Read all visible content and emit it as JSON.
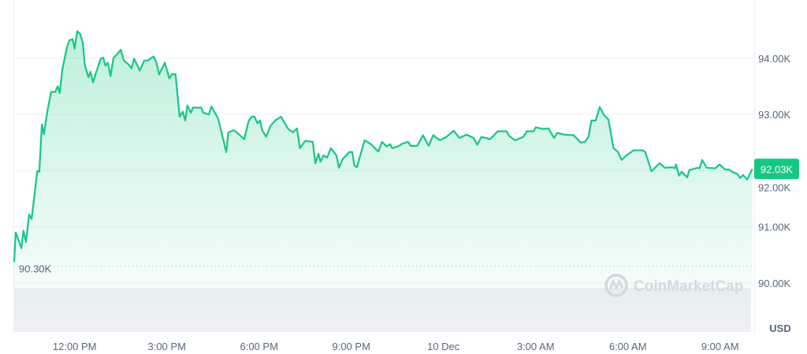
{
  "chart_data": {
    "type": "line",
    "currency": "USD",
    "line_color": "#16c784",
    "reference_line": {
      "value": 90300,
      "label": "90.30K"
    },
    "current_price": {
      "value": 92030,
      "label": "92.03K",
      "color": "#16c784"
    },
    "watermark": "CoinMarketCap",
    "ylim": [
      89000,
      94900
    ],
    "grid": true,
    "y_ticks": [
      {
        "value": 94000,
        "label": "94.00K"
      },
      {
        "value": 93000,
        "label": "93.00K"
      },
      {
        "value": 92000,
        "label": "92.00K"
      },
      {
        "value": 91000,
        "label": "91.00K"
      },
      {
        "value": 90000,
        "label": "90.00K"
      }
    ],
    "x_ticks": [
      {
        "time": "09 Dec 12:00",
        "label": "12:00 PM"
      },
      {
        "time": "09 Dec 15:00",
        "label": "3:00 PM"
      },
      {
        "time": "09 Dec 18:00",
        "label": "6:00 PM"
      },
      {
        "time": "09 Dec 21:00",
        "label": "9:00 PM"
      },
      {
        "time": "10 Dec 00:00",
        "label": "10 Dec"
      },
      {
        "time": "10 Dec 03:00",
        "label": "3:00 AM"
      },
      {
        "time": "10 Dec 06:00",
        "label": "6:00 AM"
      },
      {
        "time": "10 Dec 09:00",
        "label": "9:00 AM"
      }
    ],
    "series": [
      {
        "x": [
          "09 Dec 10:02",
          "09 Dec 10:05",
          "09 Dec 10:16",
          "09 Dec 10:20",
          "09 Dec 10:25",
          "09 Dec 10:31",
          "09 Dec 10:36",
          "09 Dec 10:47",
          "09 Dec 10:51",
          "09 Dec 10:56",
          "09 Dec 11:00",
          "09 Dec 11:07",
          "09 Dec 11:14",
          "09 Dec 11:22",
          "09 Dec 11:27",
          "09 Dec 11:31",
          "09 Dec 11:36",
          "09 Dec 11:45",
          "09 Dec 11:50",
          "09 Dec 11:56",
          "09 Dec 12:00",
          "09 Dec 12:05",
          "09 Dec 12:11",
          "09 Dec 12:16",
          "09 Dec 12:20",
          "09 Dec 12:27",
          "09 Dec 12:31",
          "09 Dec 12:36",
          "09 Dec 12:42",
          "09 Dec 12:51",
          "09 Dec 12:56",
          "09 Dec 13:00",
          "09 Dec 13:05",
          "09 Dec 13:10",
          "09 Dec 13:16",
          "09 Dec 13:22",
          "09 Dec 13:30",
          "09 Dec 13:36",
          "09 Dec 13:45",
          "09 Dec 13:51",
          "09 Dec 13:56",
          "09 Dec 14:00",
          "09 Dec 14:07",
          "09 Dec 14:16",
          "09 Dec 14:23",
          "09 Dec 14:34",
          "09 Dec 14:39",
          "09 Dec 14:45",
          "09 Dec 14:56",
          "09 Dec 15:05",
          "09 Dec 15:10",
          "09 Dec 15:17",
          "09 Dec 15:25",
          "09 Dec 15:31",
          "09 Dec 15:36",
          "09 Dec 15:40",
          "09 Dec 15:47",
          "09 Dec 15:51",
          "09 Dec 16:07",
          "09 Dec 16:11",
          "09 Dec 16:22",
          "09 Dec 16:27",
          "09 Dec 16:40",
          "09 Dec 16:56",
          "09 Dec 17:00",
          "09 Dec 17:11",
          "09 Dec 17:20",
          "09 Dec 17:31",
          "09 Dec 17:40",
          "09 Dec 17:46",
          "09 Dec 17:51",
          "09 Dec 17:57",
          "09 Dec 18:02",
          "09 Dec 18:06",
          "09 Dec 18:14",
          "09 Dec 18:22",
          "09 Dec 18:31",
          "09 Dec 18:43",
          "09 Dec 18:56",
          "09 Dec 19:06",
          "09 Dec 19:14",
          "09 Dec 19:20",
          "09 Dec 19:30",
          "09 Dec 19:45",
          "09 Dec 19:50",
          "09 Dec 19:56",
          "09 Dec 20:00",
          "09 Dec 20:06",
          "09 Dec 20:13",
          "09 Dec 20:20",
          "09 Dec 20:31",
          "09 Dec 20:36",
          "09 Dec 20:43",
          "09 Dec 20:56",
          "09 Dec 21:02",
          "09 Dec 21:06",
          "09 Dec 21:11",
          "09 Dec 21:26",
          "09 Dec 21:37",
          "09 Dec 21:53",
          "09 Dec 22:00",
          "09 Dec 22:09",
          "09 Dec 22:16",
          "09 Dec 22:20",
          "09 Dec 22:31",
          "09 Dec 22:40",
          "09 Dec 22:51",
          "09 Dec 22:56",
          "09 Dec 23:09",
          "09 Dec 23:20",
          "09 Dec 23:31",
          "09 Dec 23:40",
          "09 Dec 23:53",
          "10 Dec 00:06",
          "10 Dec 00:20",
          "10 Dec 00:31",
          "10 Dec 00:45",
          "10 Dec 00:59",
          "10 Dec 01:06",
          "10 Dec 01:14",
          "10 Dec 01:31",
          "10 Dec 01:46",
          "10 Dec 02:03",
          "10 Dec 02:09",
          "10 Dec 02:20",
          "10 Dec 02:36",
          "10 Dec 02:43",
          "10 Dec 02:56",
          "10 Dec 03:00",
          "10 Dec 03:14",
          "10 Dec 03:25",
          "10 Dec 03:36",
          "10 Dec 03:42",
          "10 Dec 03:57",
          "10 Dec 04:14",
          "10 Dec 04:28",
          "10 Dec 04:36",
          "10 Dec 04:43",
          "10 Dec 04:49",
          "10 Dec 04:57",
          "10 Dec 05:05",
          "10 Dec 05:14",
          "10 Dec 05:22",
          "10 Dec 05:32",
          "10 Dec 05:40",
          "10 Dec 05:48",
          "10 Dec 05:57",
          "10 Dec 06:11",
          "10 Dec 06:29",
          "10 Dec 06:34",
          "10 Dec 06:46",
          "10 Dec 07:02",
          "10 Dec 07:12",
          "10 Dec 07:26",
          "10 Dec 07:32",
          "10 Dec 07:34",
          "10 Dec 07:40",
          "10 Dec 07:45",
          "10 Dec 07:56",
          "10 Dec 08:00",
          "10 Dec 08:16",
          "10 Dec 08:20",
          "10 Dec 08:25",
          "10 Dec 08:34",
          "10 Dec 08:51",
          "10 Dec 08:59",
          "10 Dec 09:10",
          "10 Dec 09:17",
          "10 Dec 09:23",
          "10 Dec 09:34",
          "10 Dec 09:39",
          "10 Dec 09:45",
          "10 Dec 09:53",
          "10 Dec 10:03"
        ],
        "y": [
          90370,
          90900,
          90620,
          90930,
          90730,
          91220,
          91140,
          91990,
          91980,
          92820,
          92650,
          93070,
          93400,
          93400,
          93500,
          93380,
          93800,
          94200,
          94320,
          94340,
          94170,
          94480,
          94430,
          94270,
          93870,
          93660,
          93760,
          93570,
          93750,
          93990,
          94010,
          93870,
          93920,
          93680,
          94010,
          94060,
          94150,
          93960,
          93890,
          93820,
          93990,
          93920,
          93780,
          93960,
          93960,
          94030,
          93940,
          93710,
          93920,
          93640,
          93720,
          93710,
          92960,
          93050,
          92890,
          93160,
          93030,
          93120,
          93120,
          93030,
          93000,
          93140,
          92930,
          92330,
          92680,
          92720,
          92650,
          92560,
          92890,
          92960,
          92960,
          92840,
          92890,
          92720,
          92600,
          92790,
          92890,
          92960,
          92750,
          92680,
          92750,
          92400,
          92530,
          92510,
          92130,
          92300,
          92160,
          92270,
          92230,
          92400,
          92270,
          92050,
          92200,
          92330,
          92330,
          92090,
          92060,
          92540,
          92480,
          92340,
          92510,
          92430,
          92470,
          92400,
          92430,
          92480,
          92510,
          92440,
          92440,
          92630,
          92440,
          92630,
          92540,
          92600,
          92710,
          92580,
          92640,
          92580,
          92460,
          92600,
          92560,
          92700,
          92700,
          92610,
          92540,
          92600,
          92700,
          92700,
          92770,
          92740,
          92750,
          92580,
          92670,
          92640,
          92630,
          92500,
          92510,
          92600,
          92890,
          92890,
          93130,
          92980,
          92910,
          92400,
          92340,
          92190,
          92270,
          92360,
          92360,
          92330,
          91990,
          92130,
          92050,
          92060,
          92040,
          92110,
          91910,
          91980,
          91880,
          92010,
          92050,
          92040,
          92190,
          92050,
          92040,
          92110,
          92020,
          92020,
          91980,
          91940,
          91870,
          91920,
          91840,
          92030
        ]
      }
    ]
  }
}
